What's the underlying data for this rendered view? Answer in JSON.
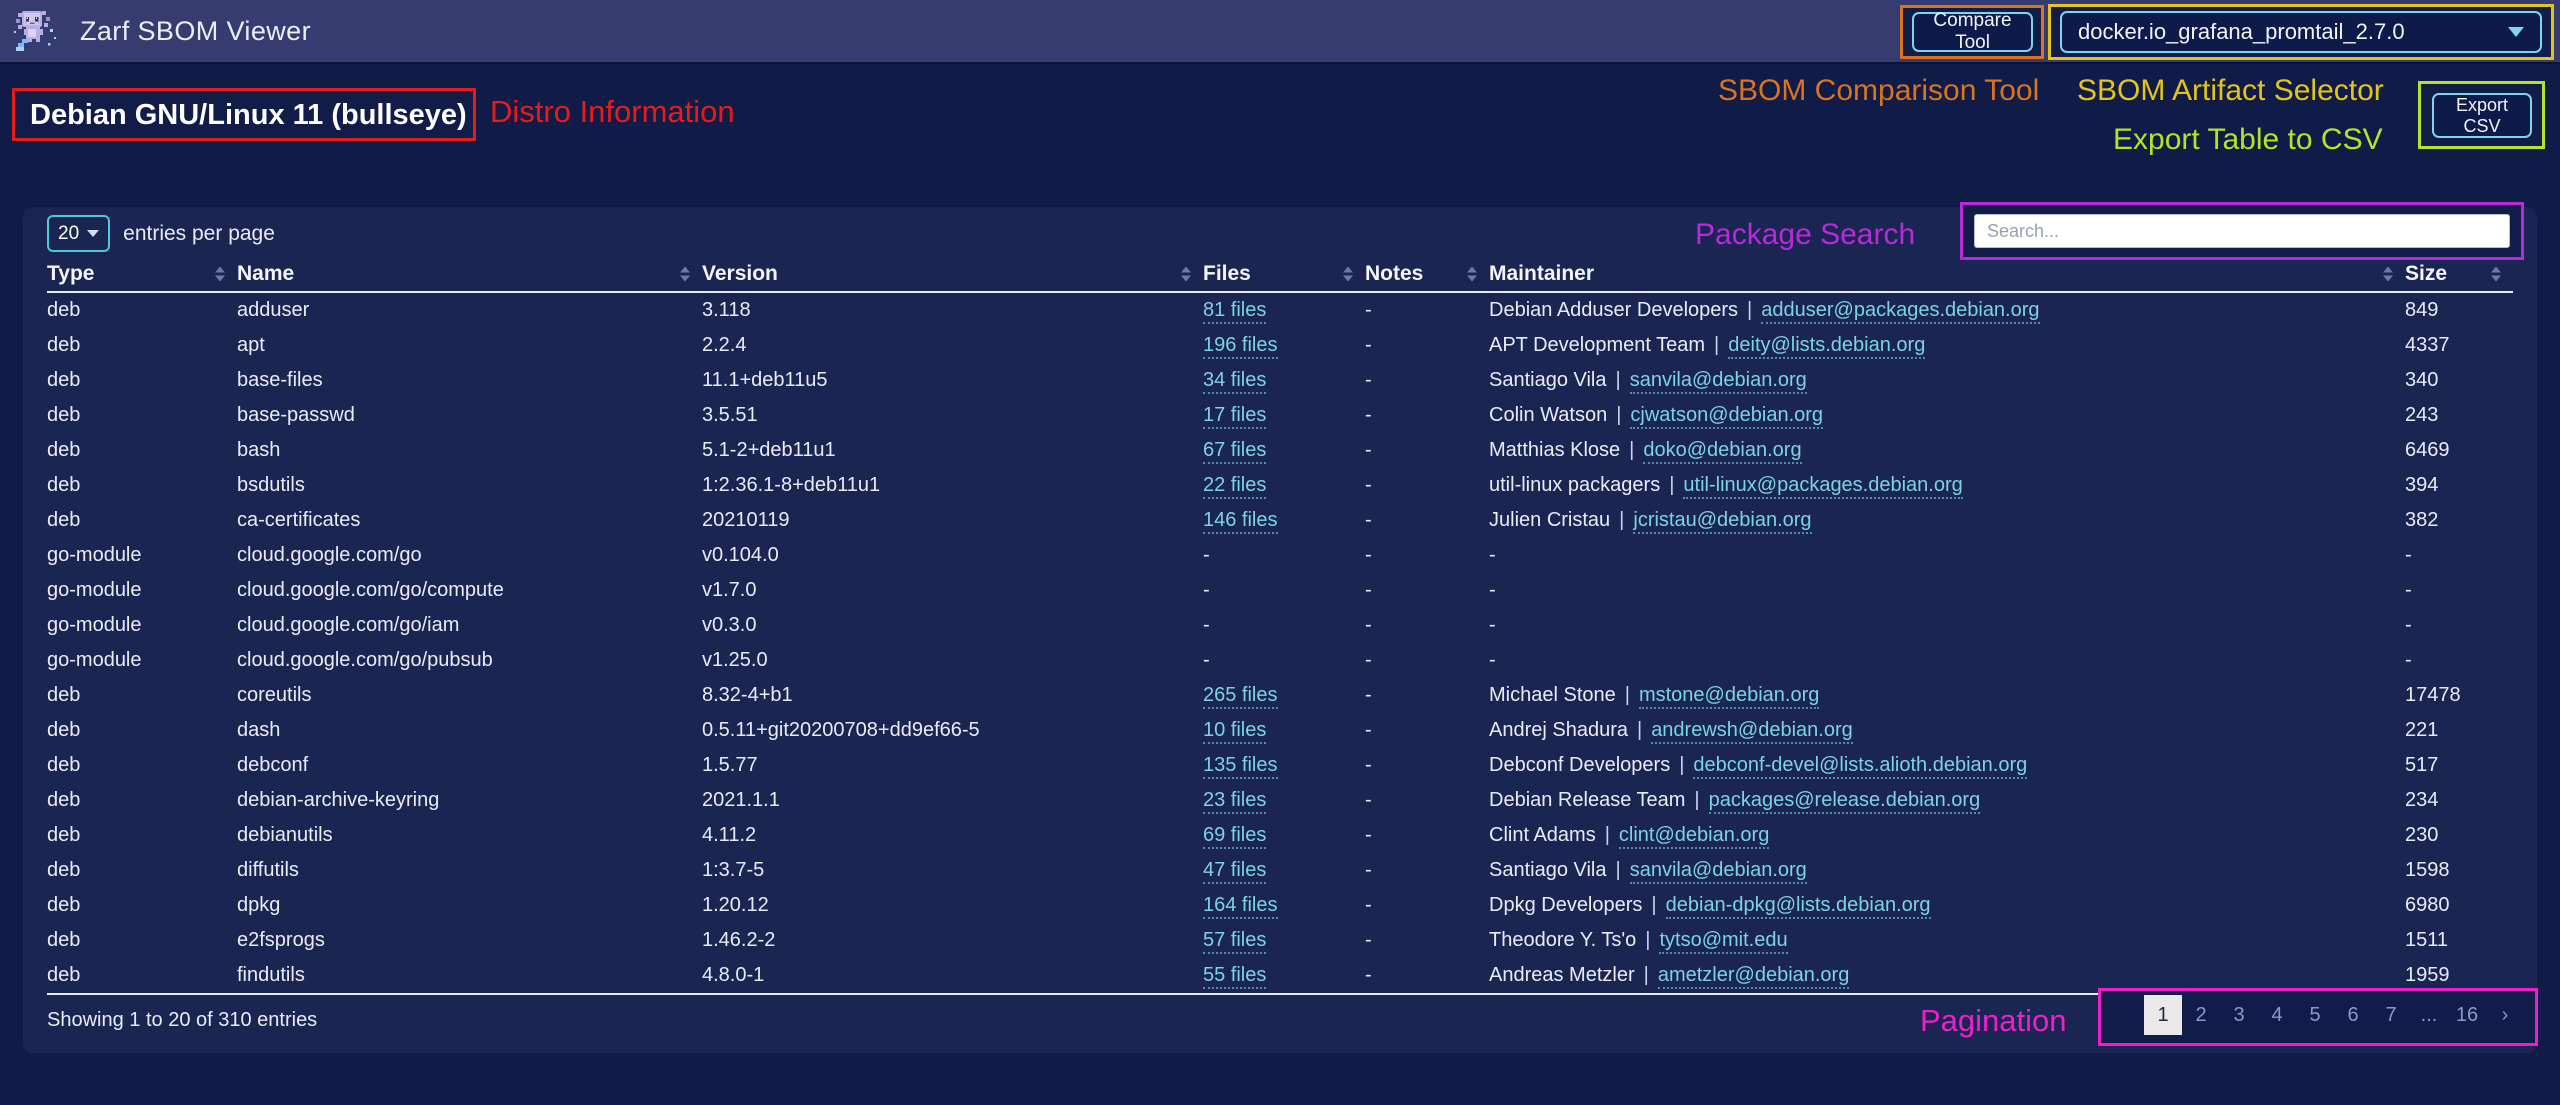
{
  "header": {
    "title": "Zarf SBOM Viewer",
    "compare_button": "Compare Tool",
    "artifact_selected": "docker.io_grafana_promtail_2.7.0"
  },
  "page": {
    "distro_title": "Debian GNU/Linux 11 (bullseye)",
    "export_button": "Export CSV"
  },
  "annotations": {
    "comparison_tool": "SBOM Comparison Tool",
    "artifact_selector": "SBOM Artifact Selector",
    "export_csv": "Export Table to CSV",
    "distro": "Distro Information",
    "search": "Package Search",
    "pagination": "Pagination"
  },
  "colors": {
    "page_bg": "#101b47",
    "topbar_bg": "#363c6f",
    "panel_bg": "#1b2552",
    "control_bg": "#0d1a4a",
    "anno_fill": "#111c49",
    "cyan": "#7fd6e8",
    "teal": "#4fc9d6",
    "link": "#7cd3e2",
    "line": "#e8ebf5",
    "muted": "#8d98c2",
    "active_bg": "#eae8e8",
    "orange": "#d9731d",
    "yellow": "#e2c41d",
    "red": "#e51c1c",
    "green": "#b5e32c",
    "magenta": "#b62ad9",
    "pink": "#ee1ecb"
  },
  "table": {
    "entries_per_page": "20",
    "entries_label": "entries per page",
    "search_placeholder": "Search...",
    "columns": [
      "Type",
      "Name",
      "Version",
      "Files",
      "Notes",
      "Maintainer",
      "Size"
    ],
    "rows": [
      {
        "type": "deb",
        "name": "adduser",
        "version": "3.118",
        "files": "81 files",
        "notes": "-",
        "maintainer": "Debian Adduser Developers",
        "email": "adduser@packages.debian.org",
        "size": "849"
      },
      {
        "type": "deb",
        "name": "apt",
        "version": "2.2.4",
        "files": "196 files",
        "notes": "-",
        "maintainer": "APT Development Team",
        "email": "deity@lists.debian.org",
        "size": "4337"
      },
      {
        "type": "deb",
        "name": "base-files",
        "version": "11.1+deb11u5",
        "files": "34 files",
        "notes": "-",
        "maintainer": "Santiago Vila",
        "email": "sanvila@debian.org",
        "size": "340"
      },
      {
        "type": "deb",
        "name": "base-passwd",
        "version": "3.5.51",
        "files": "17 files",
        "notes": "-",
        "maintainer": "Colin Watson",
        "email": "cjwatson@debian.org",
        "size": "243"
      },
      {
        "type": "deb",
        "name": "bash",
        "version": "5.1-2+deb11u1",
        "files": "67 files",
        "notes": "-",
        "maintainer": "Matthias Klose",
        "email": "doko@debian.org",
        "size": "6469"
      },
      {
        "type": "deb",
        "name": "bsdutils",
        "version": "1:2.36.1-8+deb11u1",
        "files": "22 files",
        "notes": "-",
        "maintainer": "util-linux packagers",
        "email": "util-linux@packages.debian.org",
        "size": "394"
      },
      {
        "type": "deb",
        "name": "ca-certificates",
        "version": "20210119",
        "files": "146 files",
        "notes": "-",
        "maintainer": "Julien Cristau",
        "email": "jcristau@debian.org",
        "size": "382"
      },
      {
        "type": "go-module",
        "name": "cloud.google.com/go",
        "version": "v0.104.0",
        "files": "-",
        "notes": "-",
        "maintainer": "-",
        "email": "",
        "size": "-"
      },
      {
        "type": "go-module",
        "name": "cloud.google.com/go/compute",
        "version": "v1.7.0",
        "files": "-",
        "notes": "-",
        "maintainer": "-",
        "email": "",
        "size": "-"
      },
      {
        "type": "go-module",
        "name": "cloud.google.com/go/iam",
        "version": "v0.3.0",
        "files": "-",
        "notes": "-",
        "maintainer": "-",
        "email": "",
        "size": "-"
      },
      {
        "type": "go-module",
        "name": "cloud.google.com/go/pubsub",
        "version": "v1.25.0",
        "files": "-",
        "notes": "-",
        "maintainer": "-",
        "email": "",
        "size": "-"
      },
      {
        "type": "deb",
        "name": "coreutils",
        "version": "8.32-4+b1",
        "files": "265 files",
        "notes": "-",
        "maintainer": "Michael Stone",
        "email": "mstone@debian.org",
        "size": "17478"
      },
      {
        "type": "deb",
        "name": "dash",
        "version": "0.5.11+git20200708+dd9ef66-5",
        "files": "10 files",
        "notes": "-",
        "maintainer": "Andrej Shadura",
        "email": "andrewsh@debian.org",
        "size": "221"
      },
      {
        "type": "deb",
        "name": "debconf",
        "version": "1.5.77",
        "files": "135 files",
        "notes": "-",
        "maintainer": "Debconf Developers",
        "email": "debconf-devel@lists.alioth.debian.org",
        "size": "517"
      },
      {
        "type": "deb",
        "name": "debian-archive-keyring",
        "version": "2021.1.1",
        "files": "23 files",
        "notes": "-",
        "maintainer": "Debian Release Team",
        "email": "packages@release.debian.org",
        "size": "234"
      },
      {
        "type": "deb",
        "name": "debianutils",
        "version": "4.11.2",
        "files": "69 files",
        "notes": "-",
        "maintainer": "Clint Adams",
        "email": "clint@debian.org",
        "size": "230"
      },
      {
        "type": "deb",
        "name": "diffutils",
        "version": "1:3.7-5",
        "files": "47 files",
        "notes": "-",
        "maintainer": "Santiago Vila",
        "email": "sanvila@debian.org",
        "size": "1598"
      },
      {
        "type": "deb",
        "name": "dpkg",
        "version": "1.20.12",
        "files": "164 files",
        "notes": "-",
        "maintainer": "Dpkg Developers",
        "email": "debian-dpkg@lists.debian.org",
        "size": "6980"
      },
      {
        "type": "deb",
        "name": "e2fsprogs",
        "version": "1.46.2-2",
        "files": "57 files",
        "notes": "-",
        "maintainer": "Theodore Y. Ts'o",
        "email": "tytso@mit.edu",
        "size": "1511"
      },
      {
        "type": "deb",
        "name": "findutils",
        "version": "4.8.0-1",
        "files": "55 files",
        "notes": "-",
        "maintainer": "Andreas Metzler",
        "email": "ametzler@debian.org",
        "size": "1959"
      }
    ],
    "footer": {
      "showing": "Showing 1 to 20 of 310 entries",
      "pages": [
        "1",
        "2",
        "3",
        "4",
        "5",
        "6",
        "7",
        "...",
        "16",
        "›"
      ],
      "active_page": "1"
    }
  }
}
